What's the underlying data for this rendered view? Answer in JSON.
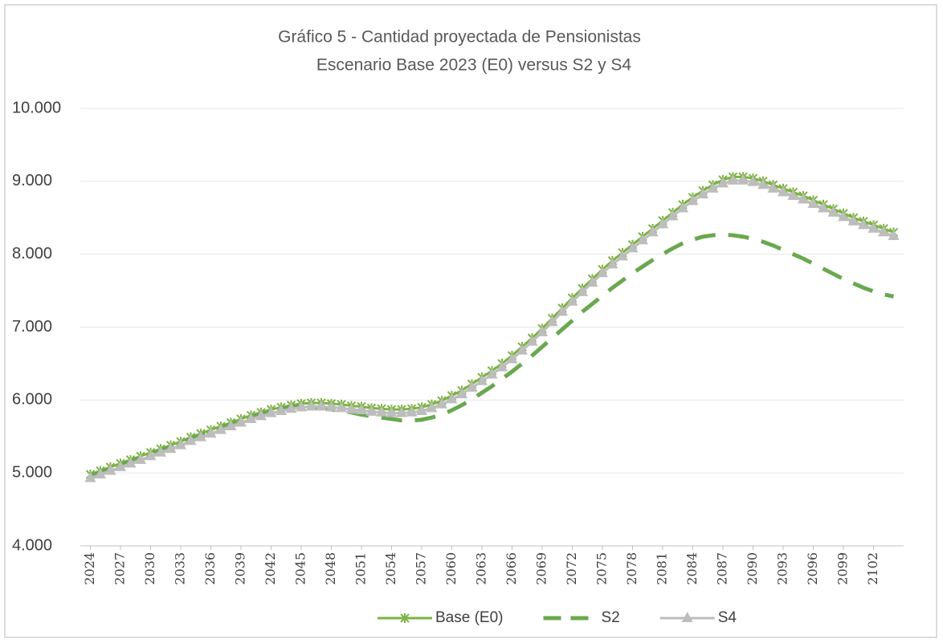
{
  "chart_data": {
    "type": "line",
    "title": "Gráfico 5 - Cantidad  proyectada de Pensionistas",
    "subtitle": "Escenario Base 2023 (E0) versus S2 y S4",
    "x": [
      2024,
      2025,
      2026,
      2027,
      2028,
      2029,
      2030,
      2031,
      2032,
      2033,
      2034,
      2035,
      2036,
      2037,
      2038,
      2039,
      2040,
      2041,
      2042,
      2043,
      2044,
      2045,
      2046,
      2047,
      2048,
      2049,
      2050,
      2051,
      2052,
      2053,
      2054,
      2055,
      2056,
      2057,
      2058,
      2059,
      2060,
      2061,
      2062,
      2063,
      2064,
      2065,
      2066,
      2067,
      2068,
      2069,
      2070,
      2071,
      2072,
      2073,
      2074,
      2075,
      2076,
      2077,
      2078,
      2079,
      2080,
      2081,
      2082,
      2083,
      2084,
      2085,
      2086,
      2087,
      2088,
      2089,
      2090,
      2091,
      2092,
      2093,
      2094,
      2095,
      2096,
      2097,
      2098,
      2099,
      2100,
      2101,
      2102,
      2103,
      2104
    ],
    "series": [
      {
        "name": "Base (E0)",
        "color": "#7cb342",
        "marker": "asterisk",
        "values": [
          4980,
          5030,
          5080,
          5130,
          5180,
          5230,
          5280,
          5330,
          5380,
          5430,
          5490,
          5540,
          5590,
          5640,
          5690,
          5740,
          5790,
          5830,
          5870,
          5900,
          5930,
          5950,
          5960,
          5960,
          5950,
          5940,
          5920,
          5910,
          5890,
          5880,
          5870,
          5870,
          5880,
          5900,
          5940,
          5990,
          6060,
          6130,
          6220,
          6310,
          6400,
          6500,
          6610,
          6730,
          6850,
          6980,
          7120,
          7260,
          7400,
          7530,
          7660,
          7790,
          7910,
          8020,
          8130,
          8240,
          8350,
          8460,
          8570,
          8680,
          8780,
          8870,
          8950,
          9020,
          9060,
          9060,
          9040,
          9000,
          8950,
          8900,
          8850,
          8800,
          8740,
          8680,
          8620,
          8560,
          8500,
          8450,
          8400,
          8350,
          8300
        ]
      },
      {
        "name": "S2",
        "color": "#6aa84f",
        "dash": true,
        "values": [
          4960,
          5010,
          5060,
          5110,
          5160,
          5210,
          5260,
          5310,
          5360,
          5410,
          5470,
          5520,
          5570,
          5620,
          5670,
          5720,
          5770,
          5810,
          5850,
          5880,
          5900,
          5910,
          5910,
          5890,
          5870,
          5850,
          5830,
          5800,
          5780,
          5760,
          5740,
          5720,
          5720,
          5730,
          5760,
          5800,
          5860,
          5930,
          6010,
          6100,
          6190,
          6290,
          6390,
          6500,
          6610,
          6730,
          6850,
          6970,
          7090,
          7210,
          7320,
          7430,
          7540,
          7640,
          7740,
          7830,
          7920,
          8000,
          8080,
          8150,
          8200,
          8240,
          8260,
          8270,
          8260,
          8240,
          8210,
          8170,
          8120,
          8060,
          8000,
          7940,
          7870,
          7800,
          7730,
          7660,
          7600,
          7540,
          7490,
          7450,
          7420
        ]
      },
      {
        "name": "S4",
        "color": "#bdbdbd",
        "marker": "triangle",
        "values": [
          4930,
          4980,
          5030,
          5080,
          5130,
          5180,
          5230,
          5280,
          5330,
          5380,
          5440,
          5490,
          5540,
          5590,
          5640,
          5690,
          5740,
          5780,
          5820,
          5850,
          5880,
          5900,
          5910,
          5910,
          5900,
          5890,
          5870,
          5860,
          5840,
          5830,
          5820,
          5820,
          5830,
          5850,
          5890,
          5940,
          6010,
          6080,
          6170,
          6260,
          6350,
          6450,
          6560,
          6680,
          6800,
          6930,
          7070,
          7210,
          7350,
          7480,
          7610,
          7740,
          7860,
          7970,
          8080,
          8190,
          8300,
          8410,
          8520,
          8630,
          8730,
          8820,
          8900,
          8970,
          9010,
          9010,
          8990,
          8950,
          8900,
          8850,
          8800,
          8750,
          8690,
          8630,
          8570,
          8510,
          8450,
          8400,
          8350,
          8300,
          8250
        ]
      }
    ],
    "xlim": [
      2023,
      2105
    ],
    "xticks": [
      2024,
      2027,
      2030,
      2033,
      2036,
      2039,
      2042,
      2045,
      2048,
      2051,
      2054,
      2057,
      2060,
      2063,
      2066,
      2069,
      2072,
      2075,
      2078,
      2081,
      2084,
      2087,
      2090,
      2093,
      2096,
      2099,
      2102
    ],
    "ylim": [
      4000,
      10000
    ],
    "yticks": [
      {
        "value": 4000,
        "label": "4.000"
      },
      {
        "value": 5000,
        "label": "5.000"
      },
      {
        "value": 6000,
        "label": "6.000"
      },
      {
        "value": 7000,
        "label": "7.000"
      },
      {
        "value": 8000,
        "label": "8.000"
      },
      {
        "value": 9000,
        "label": "9.000"
      },
      {
        "value": 10000,
        "label": "10.000"
      }
    ],
    "grid": true,
    "legend": "bottom"
  }
}
